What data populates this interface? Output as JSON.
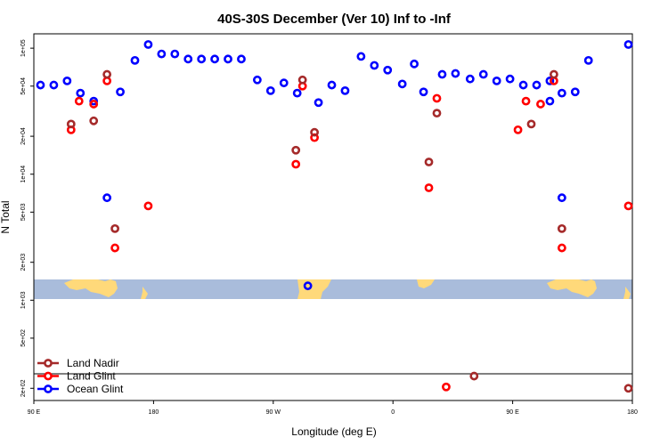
{
  "chart_data": {
    "type": "scatter",
    "title": "40S-30S December (Ver 10)   Inf to -Inf",
    "xlabel": "Longitude (deg E)",
    "ylabel": "N Total",
    "x_scale": "linear",
    "y_scale": "log",
    "xlim": [
      90,
      540
    ],
    "ylim": [
      160,
      130000
    ],
    "x_ticks": [
      {
        "value": 90,
        "label": "90 E"
      },
      {
        "value": 180,
        "label": "180"
      },
      {
        "value": 270,
        "label": "90 W"
      },
      {
        "value": 360,
        "label": "0"
      },
      {
        "value": 450,
        "label": "90 E"
      },
      {
        "value": 540,
        "label": "180"
      }
    ],
    "y_ticks": [
      {
        "value": 200,
        "label": "2e+02"
      },
      {
        "value": 500,
        "label": "5e+02"
      },
      {
        "value": 1000,
        "label": "1e+03"
      },
      {
        "value": 2000,
        "label": "2e+03"
      },
      {
        "value": 5000,
        "label": "5e+03"
      },
      {
        "value": 10000,
        "label": "1e+04"
      },
      {
        "value": 20000,
        "label": "2e+04"
      },
      {
        "value": 50000,
        "label": "5e+04"
      },
      {
        "value": 100000,
        "label": "1e+05"
      }
    ],
    "legend_position": "bottom-left",
    "series": [
      {
        "name": "Land Nadir",
        "color": "#a52a2a",
        "points": [
          [
            118,
            25000
          ],
          [
            135,
            26500
          ],
          [
            145,
            62000
          ],
          [
            151,
            3700
          ],
          [
            287,
            15500
          ],
          [
            292,
            56000
          ],
          [
            301,
            21500
          ],
          [
            387,
            12500
          ],
          [
            393,
            30500
          ],
          [
            421,
            250
          ],
          [
            464,
            25000
          ],
          [
            481,
            62000
          ],
          [
            487,
            3700
          ],
          [
            537,
            200
          ]
        ]
      },
      {
        "name": "Land Glint",
        "color": "#ff0000",
        "points": [
          [
            118,
            22500
          ],
          [
            124,
            38000
          ],
          [
            135,
            36000
          ],
          [
            145,
            55000
          ],
          [
            151,
            2600
          ],
          [
            176,
            5600
          ],
          [
            287,
            12000
          ],
          [
            292,
            50000
          ],
          [
            301,
            19500
          ],
          [
            387,
            7800
          ],
          [
            393,
            40000
          ],
          [
            400,
            205
          ],
          [
            454,
            22500
          ],
          [
            460,
            38000
          ],
          [
            471,
            36000
          ],
          [
            481,
            55000
          ],
          [
            487,
            2600
          ],
          [
            537,
            5600
          ]
        ]
      },
      {
        "name": "Ocean Glint",
        "color": "#0000ff",
        "points": [
          [
            95,
            51000
          ],
          [
            105,
            51000
          ],
          [
            115,
            55000
          ],
          [
            125,
            44000
          ],
          [
            135,
            38000
          ],
          [
            145,
            6500
          ],
          [
            155,
            45000
          ],
          [
            166,
            80000
          ],
          [
            176,
            107000
          ],
          [
            186,
            90000
          ],
          [
            196,
            90000
          ],
          [
            206,
            82000
          ],
          [
            216,
            82000
          ],
          [
            226,
            82000
          ],
          [
            236,
            82000
          ],
          [
            246,
            82000
          ],
          [
            258,
            56000
          ],
          [
            268,
            46000
          ],
          [
            278,
            53000
          ],
          [
            288,
            44000
          ],
          [
            296,
            1300
          ],
          [
            304,
            37000
          ],
          [
            314,
            51000
          ],
          [
            324,
            46000
          ],
          [
            336,
            86000
          ],
          [
            346,
            73000
          ],
          [
            356,
            67000
          ],
          [
            367,
            52000
          ],
          [
            376,
            75000
          ],
          [
            383,
            45000
          ],
          [
            397,
            62000
          ],
          [
            407,
            63000
          ],
          [
            418,
            57000
          ],
          [
            428,
            62000
          ],
          [
            438,
            55000
          ],
          [
            448,
            57000
          ],
          [
            458,
            51000
          ],
          [
            468,
            51000
          ],
          [
            478,
            55000
          ],
          [
            487,
            44000
          ],
          [
            478,
            38000
          ],
          [
            487,
            6500
          ],
          [
            497,
            45000
          ],
          [
            507,
            80000
          ],
          [
            537,
            107000
          ]
        ]
      }
    ]
  }
}
